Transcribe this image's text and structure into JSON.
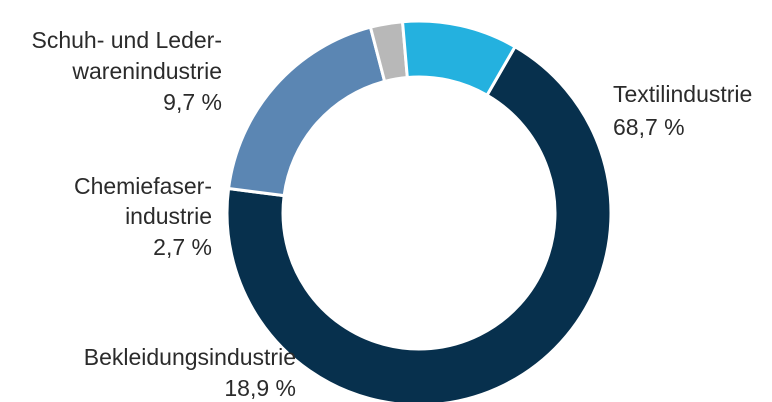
{
  "chart_data": {
    "type": "pie",
    "style": "donut",
    "slices": [
      {
        "label_lines": [
          "Textilindustrie"
        ],
        "value": 68.7,
        "value_text": "68,7 %",
        "color": "#07304d"
      },
      {
        "label_lines": [
          "Bekleidungsindustrie"
        ],
        "value": 18.9,
        "value_text": "18,9 %",
        "color": "#5b86b3"
      },
      {
        "label_lines": [
          "Chemiefaser-",
          "industrie"
        ],
        "value": 2.7,
        "value_text": "2,7 %",
        "color": "#b8b8b8"
      },
      {
        "label_lines": [
          "Schuh- und Leder-",
          "warenindustrie"
        ],
        "value": 9.7,
        "value_text": "9,7 %",
        "color": "#24b1df"
      }
    ]
  }
}
